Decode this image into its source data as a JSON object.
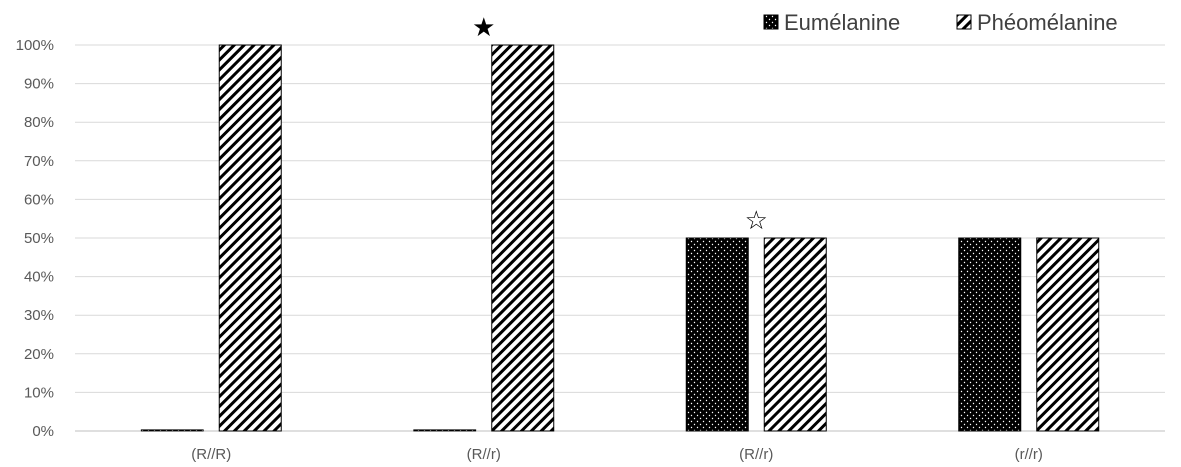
{
  "chart_data": {
    "type": "bar",
    "title": "",
    "xlabel": "",
    "ylabel": "",
    "categories": [
      "(R//R)",
      "(R//r)",
      "(R//r)",
      "(r//r)"
    ],
    "series": [
      {
        "name": "Eumélanine",
        "values": [
          0,
          0,
          50,
          50
        ],
        "fill": "dots",
        "color": "#000000"
      },
      {
        "name": "Phéomélanine",
        "values": [
          100,
          100,
          50,
          50
        ],
        "fill": "diagonal-stripes",
        "color": "#000000"
      }
    ],
    "ylim": [
      0,
      100
    ],
    "yticks": [
      "0%",
      "10%",
      "20%",
      "30%",
      "40%",
      "50%",
      "60%",
      "70%",
      "80%",
      "90%",
      "100%"
    ],
    "grid": true,
    "legend_position": "top-right",
    "annotations": [
      {
        "symbol": "★",
        "category_index": 1,
        "style": "filled-star"
      },
      {
        "symbol": "☆",
        "category_index": 2,
        "style": "outline-star"
      }
    ],
    "colors": {
      "gridline": "#d9d9d9",
      "axis": "#bfbfbf",
      "text": "#595959"
    }
  }
}
